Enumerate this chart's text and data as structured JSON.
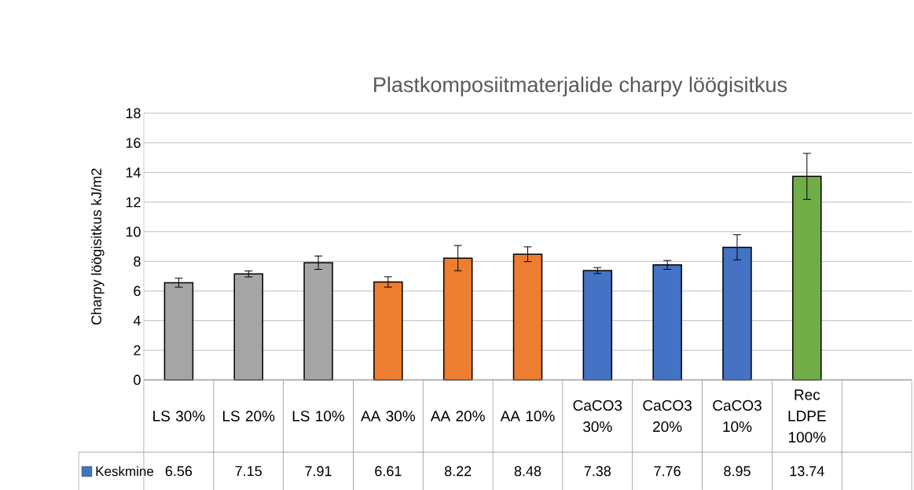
{
  "chart_data": {
    "type": "bar",
    "title": "Plastkomposiitmaterjalide charpy löögisitkus",
    "ylabel": "Charpy löögisitkus kJ/m2",
    "categories": [
      "LS 30%",
      "LS 20%",
      "LS 10%",
      "AA 30%",
      "AA 20%",
      "AA 10%",
      "CaCO3 30%",
      "CaCO3 20%",
      "CaCO3 10%",
      "Rec LDPE 100%",
      null
    ],
    "series": [
      {
        "name": "Keskmine",
        "color": "#4472c4",
        "colors": [
          "#a5a5a5",
          "#a5a5a5",
          "#a5a5a5",
          "#ed7d31",
          "#ed7d31",
          "#ed7d31",
          "#4472c4",
          "#4472c4",
          "#4472c4",
          "#70ad47",
          null
        ],
        "values": [
          6.56,
          7.15,
          7.91,
          6.61,
          8.22,
          8.48,
          7.38,
          7.76,
          8.95,
          13.74,
          null
        ],
        "errors": [
          0.3,
          0.2,
          0.45,
          0.35,
          0.85,
          0.5,
          0.2,
          0.3,
          0.85,
          1.55,
          null
        ]
      }
    ],
    "ylim": [
      0,
      18
    ],
    "yticks": [
      0,
      2,
      4,
      6,
      8,
      10,
      12,
      14,
      16,
      18
    ],
    "grid": "y",
    "legend": "bottom",
    "data_labels": true
  }
}
